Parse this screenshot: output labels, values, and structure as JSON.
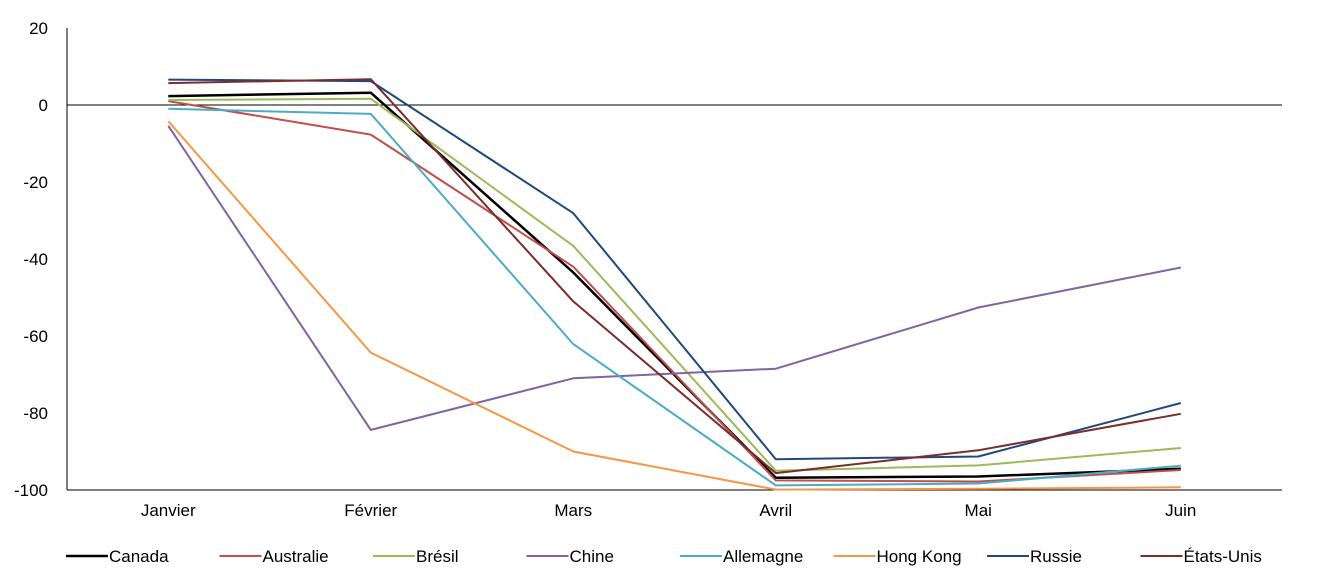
{
  "chart_data": {
    "type": "line",
    "title": "",
    "xlabel": "",
    "ylabel": "",
    "categories": [
      "Janvier",
      "Février",
      "Mars",
      "Avril",
      "Mai",
      "Juin"
    ],
    "ylim": [
      -100,
      20
    ],
    "yticks": [
      20,
      0,
      -20,
      -40,
      -60,
      -80,
      -100
    ],
    "grid": false,
    "zero_line": true,
    "legend_position": "bottom",
    "series": [
      {
        "name": "Canada",
        "color": "#000000",
        "values": [
          2.3,
          3.2,
          -43.5,
          -96.8,
          -96.5,
          -94.5
        ]
      },
      {
        "name": "Australie",
        "color": "#C0504D",
        "values": [
          1.0,
          -7.7,
          -42.0,
          -97.5,
          -97.8,
          -94.8
        ]
      },
      {
        "name": "Brésil",
        "color": "#9BBB59",
        "values": [
          1.3,
          1.6,
          -36.6,
          -95.0,
          -93.6,
          -89.1
        ]
      },
      {
        "name": "Chine",
        "color": "#8064A2",
        "values": [
          -5.4,
          -84.4,
          -71.0,
          -68.5,
          -52.6,
          -42.2
        ]
      },
      {
        "name": "Allemagne",
        "color": "#4BACC6",
        "values": [
          -1.0,
          -2.3,
          -62.1,
          -98.8,
          -98.3,
          -93.7
        ]
      },
      {
        "name": "Hong Kong",
        "color": "#F79646",
        "values": [
          -4.2,
          -64.3,
          -90.0,
          -99.9,
          -99.7,
          -99.3
        ]
      },
      {
        "name": "Russie",
        "color": "#1F497D",
        "values": [
          6.6,
          6.2,
          -28.1,
          -92.0,
          -91.3,
          -77.4
        ]
      },
      {
        "name": "États-Unis",
        "color": "#7B2C2C",
        "values": [
          5.7,
          6.7,
          -51.0,
          -95.6,
          -89.7,
          -80.2
        ]
      }
    ]
  }
}
